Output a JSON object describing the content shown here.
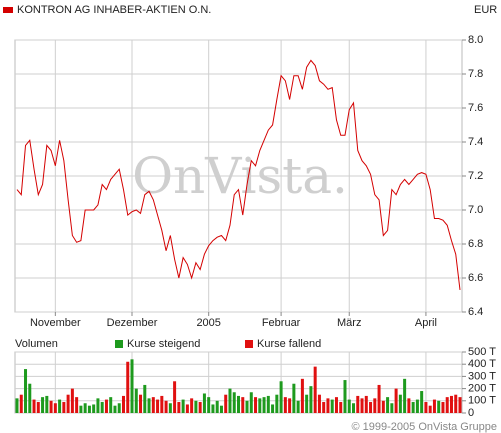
{
  "chart_data": [
    {
      "type": "line",
      "title": "KONTRON AG INHABER-AKTIEN O.N.",
      "currency": "EUR",
      "watermark": "OnVista.",
      "series": [
        {
          "name": "KONTRON AG INHABER-AKTIEN O.N.",
          "color": "#d40000",
          "values": [
            7.12,
            7.09,
            7.38,
            7.41,
            7.24,
            7.09,
            7.15,
            7.38,
            7.35,
            7.26,
            7.41,
            7.29,
            7.06,
            6.85,
            6.81,
            6.82,
            7.0,
            7.0,
            7.0,
            7.03,
            7.15,
            7.12,
            7.18,
            7.21,
            7.24,
            7.12,
            6.97,
            6.99,
            7.0,
            6.98,
            7.09,
            7.11,
            7.06,
            6.97,
            6.88,
            6.76,
            6.85,
            6.71,
            6.6,
            6.72,
            6.68,
            6.6,
            6.69,
            6.65,
            6.74,
            6.79,
            6.82,
            6.84,
            6.85,
            6.82,
            6.91,
            7.09,
            7.12,
            6.97,
            7.15,
            7.29,
            7.26,
            7.35,
            7.41,
            7.47,
            7.5,
            7.65,
            7.79,
            7.76,
            7.65,
            7.79,
            7.79,
            7.71,
            7.84,
            7.88,
            7.85,
            7.76,
            7.74,
            7.71,
            7.72,
            7.53,
            7.44,
            7.44,
            7.59,
            7.63,
            7.35,
            7.29,
            7.26,
            7.21,
            7.09,
            7.06,
            6.85,
            6.88,
            7.12,
            7.09,
            7.15,
            7.18,
            7.15,
            7.18,
            7.21,
            7.22,
            7.21,
            7.12,
            6.95,
            6.95,
            6.94,
            6.91,
            6.82,
            6.74,
            6.53
          ]
        }
      ],
      "xlim": [
        0,
        104
      ],
      "xticks": [
        {
          "value": 9,
          "label": "November"
        },
        {
          "value": 27,
          "label": "Dezember"
        },
        {
          "value": 45,
          "label": "2005"
        },
        {
          "value": 62,
          "label": "Februar"
        },
        {
          "value": 78,
          "label": "März"
        },
        {
          "value": 96,
          "label": "April"
        }
      ],
      "ylim": [
        6.4,
        8.0
      ],
      "yticks": [
        6.4,
        6.6,
        6.8,
        {
          "value": 7,
          "label": "7.0"
        },
        7.2,
        7.4,
        7.6,
        7.8,
        {
          "value": 8,
          "label": "8.0"
        }
      ],
      "grid": true
    },
    {
      "type": "bar",
      "title": "Volumen",
      "series": [
        {
          "name": "Kurse steigend",
          "color": "#1e9a1e",
          "values": [
            120,
            null,
            360,
            240,
            null,
            null,
            130,
            140,
            null,
            null,
            110,
            null,
            null,
            null,
            null,
            60,
            80,
            60,
            70,
            120,
            90,
            null,
            130,
            60,
            80,
            null,
            null,
            440,
            200,
            null,
            230,
            120,
            null,
            null,
            null,
            null,
            80,
            null,
            null,
            110,
            null,
            null,
            100,
            null,
            160,
            130,
            70,
            100,
            60,
            null,
            200,
            170,
            140,
            null,
            100,
            170,
            null,
            120,
            130,
            140,
            70,
            150,
            260,
            null,
            null,
            240,
            100,
            null,
            150,
            220,
            null,
            null,
            null,
            null,
            110,
            null,
            null,
            270,
            110,
            80,
            null,
            null,
            null,
            null,
            null,
            null,
            null,
            130,
            80,
            null,
            150,
            280,
            null,
            90,
            110,
            180,
            null,
            null,
            null,
            100,
            null,
            null,
            null,
            null,
            null
          ]
        },
        {
          "name": "Kurse fallend",
          "color": "#e01010",
          "values": [
            null,
            150,
            null,
            null,
            110,
            90,
            null,
            null,
            100,
            80,
            null,
            90,
            150,
            200,
            130,
            null,
            null,
            null,
            null,
            null,
            null,
            110,
            null,
            null,
            null,
            140,
            420,
            null,
            null,
            150,
            null,
            null,
            130,
            110,
            140,
            100,
            null,
            260,
            90,
            null,
            70,
            120,
            null,
            90,
            null,
            null,
            null,
            null,
            null,
            150,
            null,
            null,
            null,
            130,
            null,
            null,
            130,
            null,
            null,
            null,
            null,
            null,
            null,
            130,
            120,
            null,
            null,
            280,
            null,
            null,
            380,
            150,
            90,
            120,
            null,
            130,
            90,
            null,
            null,
            null,
            140,
            120,
            140,
            90,
            120,
            230,
            100,
            null,
            null,
            200,
            null,
            null,
            120,
            null,
            null,
            null,
            90,
            60,
            110,
            null,
            90,
            130,
            140,
            150,
            130
          ]
        }
      ],
      "ylim": [
        0,
        500
      ],
      "yticks": [
        {
          "value": 0,
          "label": "0"
        },
        {
          "value": 100,
          "label": "100 T"
        },
        {
          "value": 200,
          "label": "200 T"
        },
        {
          "value": 300,
          "label": "300 T"
        },
        {
          "value": 400,
          "label": "400 T"
        },
        {
          "value": 500,
          "label": "500 T"
        }
      ],
      "grid": true
    }
  ],
  "footer": "© 1999-2005 OnVista Gruppe"
}
